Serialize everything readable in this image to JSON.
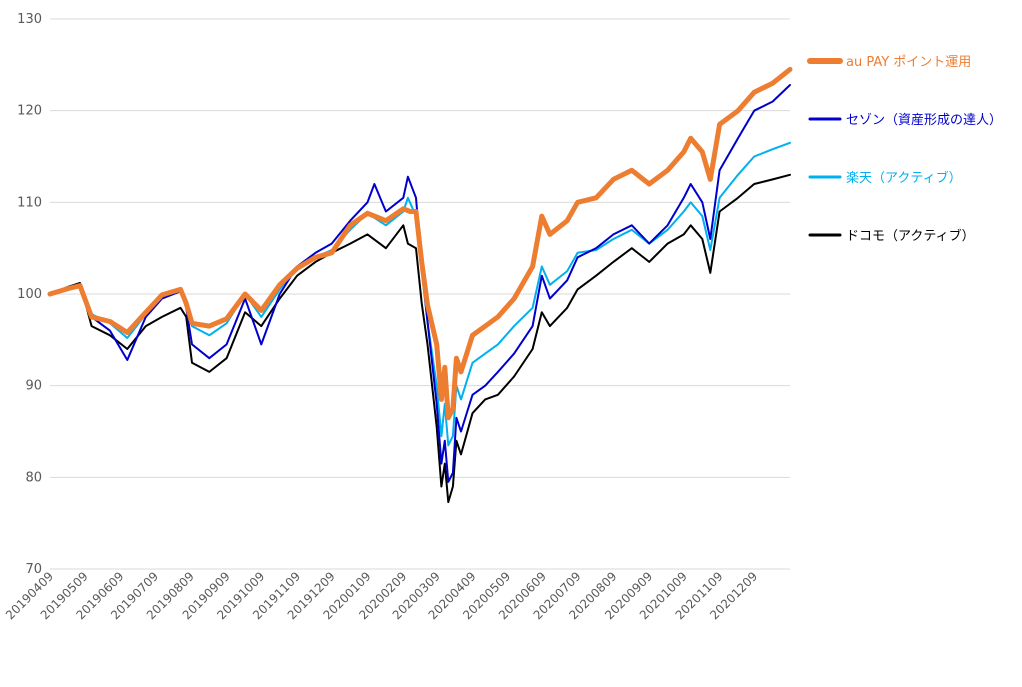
{
  "chart_data": {
    "type": "line",
    "title": "",
    "xlabel": "",
    "ylabel": "",
    "ylim": [
      70,
      130
    ],
    "yticks": [
      70,
      80,
      90,
      100,
      110,
      120,
      130
    ],
    "grid": true,
    "legend_position": "right",
    "x_tick_labels": [
      "20190409",
      "20190509",
      "20190609",
      "20190709",
      "20190809",
      "20190909",
      "20191009",
      "20191109",
      "20191209",
      "20200109",
      "20200209",
      "20200309",
      "20200409",
      "20200509",
      "20200609",
      "20200709",
      "20200809",
      "20200909",
      "20201009",
      "20201109",
      "20201209"
    ],
    "x_start": "20190409",
    "x_end": "20210109",
    "series": [
      {
        "name": "au PAY ポイント運用",
        "color": "#ED7D31",
        "width": 5,
        "points": [
          [
            "20190409",
            100.0
          ],
          [
            "20190425",
            100.6
          ],
          [
            "20190505",
            100.9
          ],
          [
            "20190515",
            97.5
          ],
          [
            "20190531",
            97.0
          ],
          [
            "20190615",
            95.8
          ],
          [
            "20190701",
            98.0
          ],
          [
            "20190715",
            99.9
          ],
          [
            "20190731",
            100.5
          ],
          [
            "20190805",
            99.0
          ],
          [
            "20190810",
            96.8
          ],
          [
            "20190825",
            96.5
          ],
          [
            "20190909",
            97.3
          ],
          [
            "20190925",
            100.0
          ],
          [
            "20191009",
            98.2
          ],
          [
            "20191025",
            101.0
          ],
          [
            "20191109",
            102.8
          ],
          [
            "20191125",
            104.0
          ],
          [
            "20191209",
            104.5
          ],
          [
            "20191225",
            107.5
          ],
          [
            "20200109",
            108.8
          ],
          [
            "20200125",
            108.0
          ],
          [
            "20200209",
            109.3
          ],
          [
            "20200215",
            109.0
          ],
          [
            "20200220",
            109.0
          ],
          [
            "20200225",
            103.5
          ],
          [
            "20200301",
            98.8
          ],
          [
            "20200309",
            94.5
          ],
          [
            "20200313",
            88.5
          ],
          [
            "20200316",
            92.0
          ],
          [
            "20200319",
            86.5
          ],
          [
            "20200323",
            87.5
          ],
          [
            "20200326",
            93.0
          ],
          [
            "20200330",
            91.5
          ],
          [
            "20200409",
            95.5
          ],
          [
            "20200420",
            96.5
          ],
          [
            "20200501",
            97.5
          ],
          [
            "20200515",
            99.5
          ],
          [
            "20200531",
            103.0
          ],
          [
            "20200608",
            108.5
          ],
          [
            "20200615",
            106.5
          ],
          [
            "20200630",
            108.0
          ],
          [
            "20200709",
            110.0
          ],
          [
            "20200725",
            110.5
          ],
          [
            "20200809",
            112.5
          ],
          [
            "20200825",
            113.5
          ],
          [
            "20200909",
            112.0
          ],
          [
            "20200925",
            113.5
          ],
          [
            "20201009",
            115.5
          ],
          [
            "20201015",
            117.0
          ],
          [
            "20201025",
            115.5
          ],
          [
            "20201101",
            112.5
          ],
          [
            "20201109",
            118.5
          ],
          [
            "20201125",
            120.0
          ],
          [
            "20201209",
            122.0
          ],
          [
            "20201225",
            123.0
          ],
          [
            "20210109",
            124.5
          ]
        ]
      },
      {
        "name": "セゾン（資産形成の達人）",
        "color": "#0000CC",
        "width": 2,
        "points": [
          [
            "20190409",
            100.0
          ],
          [
            "20190425",
            100.6
          ],
          [
            "20190505",
            101.0
          ],
          [
            "20190515",
            97.5
          ],
          [
            "20190531",
            96.0
          ],
          [
            "20190615",
            92.8
          ],
          [
            "20190701",
            97.5
          ],
          [
            "20190715",
            99.5
          ],
          [
            "20190731",
            100.3
          ],
          [
            "20190805",
            98.5
          ],
          [
            "20190810",
            94.5
          ],
          [
            "20190825",
            93.0
          ],
          [
            "20190909",
            94.5
          ],
          [
            "20190925",
            99.5
          ],
          [
            "20191009",
            94.5
          ],
          [
            "20191025",
            100.0
          ],
          [
            "20191109",
            103.0
          ],
          [
            "20191125",
            104.5
          ],
          [
            "20191209",
            105.5
          ],
          [
            "20191225",
            108.0
          ],
          [
            "20200109",
            110.0
          ],
          [
            "20200115",
            112.0
          ],
          [
            "20200125",
            109.0
          ],
          [
            "20200209",
            110.5
          ],
          [
            "20200213",
            112.8
          ],
          [
            "20200220",
            110.5
          ],
          [
            "20200225",
            103.0
          ],
          [
            "20200301",
            97.0
          ],
          [
            "20200309",
            88.0
          ],
          [
            "20200313",
            81.5
          ],
          [
            "20200316",
            84.0
          ],
          [
            "20200319",
            79.5
          ],
          [
            "20200323",
            80.5
          ],
          [
            "20200326",
            86.5
          ],
          [
            "20200330",
            85.0
          ],
          [
            "20200409",
            89.0
          ],
          [
            "20200420",
            90.0
          ],
          [
            "20200501",
            91.5
          ],
          [
            "20200515",
            93.5
          ],
          [
            "20200531",
            96.5
          ],
          [
            "20200608",
            102.0
          ],
          [
            "20200615",
            99.5
          ],
          [
            "20200630",
            101.5
          ],
          [
            "20200709",
            104.0
          ],
          [
            "20200725",
            105.0
          ],
          [
            "20200809",
            106.5
          ],
          [
            "20200825",
            107.5
          ],
          [
            "20200909",
            105.5
          ],
          [
            "20200925",
            107.5
          ],
          [
            "20201009",
            110.5
          ],
          [
            "20201015",
            112.0
          ],
          [
            "20201025",
            110.0
          ],
          [
            "20201101",
            106.0
          ],
          [
            "20201109",
            113.5
          ],
          [
            "20201125",
            117.0
          ],
          [
            "20201209",
            120.0
          ],
          [
            "20201225",
            121.0
          ],
          [
            "20210109",
            122.8
          ]
        ]
      },
      {
        "name": "楽天（アクティブ）",
        "color": "#00B0F0",
        "width": 2,
        "points": [
          [
            "20190409",
            100.0
          ],
          [
            "20190425",
            100.5
          ],
          [
            "20190505",
            100.8
          ],
          [
            "20190515",
            97.8
          ],
          [
            "20190531",
            96.8
          ],
          [
            "20190615",
            95.2
          ],
          [
            "20190701",
            97.8
          ],
          [
            "20190715",
            99.8
          ],
          [
            "20190731",
            100.4
          ],
          [
            "20190805",
            98.8
          ],
          [
            "20190810",
            96.5
          ],
          [
            "20190825",
            95.5
          ],
          [
            "20190909",
            96.8
          ],
          [
            "20190925",
            100.0
          ],
          [
            "20191009",
            97.5
          ],
          [
            "20191025",
            100.5
          ],
          [
            "20191109",
            103.0
          ],
          [
            "20191125",
            104.0
          ],
          [
            "20191209",
            104.8
          ],
          [
            "20191225",
            107.0
          ],
          [
            "20200109",
            108.8
          ],
          [
            "20200125",
            107.5
          ],
          [
            "20200209",
            109.0
          ],
          [
            "20200213",
            110.5
          ],
          [
            "20200220",
            108.5
          ],
          [
            "20200225",
            102.5
          ],
          [
            "20200301",
            97.0
          ],
          [
            "20200309",
            90.0
          ],
          [
            "20200313",
            84.5
          ],
          [
            "20200316",
            88.0
          ],
          [
            "20200319",
            83.5
          ],
          [
            "20200323",
            84.5
          ],
          [
            "20200326",
            90.0
          ],
          [
            "20200330",
            88.5
          ],
          [
            "20200409",
            92.5
          ],
          [
            "20200420",
            93.5
          ],
          [
            "20200501",
            94.5
          ],
          [
            "20200515",
            96.5
          ],
          [
            "20200531",
            98.5
          ],
          [
            "20200608",
            103.0
          ],
          [
            "20200615",
            101.0
          ],
          [
            "20200630",
            102.5
          ],
          [
            "20200709",
            104.5
          ],
          [
            "20200725",
            104.8
          ],
          [
            "20200809",
            106.0
          ],
          [
            "20200825",
            107.0
          ],
          [
            "20200909",
            105.5
          ],
          [
            "20200925",
            107.0
          ],
          [
            "20201009",
            109.0
          ],
          [
            "20201015",
            110.0
          ],
          [
            "20201025",
            108.5
          ],
          [
            "20201101",
            104.8
          ],
          [
            "20201109",
            110.5
          ],
          [
            "20201125",
            113.0
          ],
          [
            "20201209",
            115.0
          ],
          [
            "20201225",
            115.8
          ],
          [
            "20210109",
            116.5
          ]
        ]
      },
      {
        "name": "ドコモ（アクティブ）",
        "color": "#000000",
        "width": 2,
        "points": [
          [
            "20190409",
            100.0
          ],
          [
            "20190425",
            100.8
          ],
          [
            "20190505",
            101.2
          ],
          [
            "20190515",
            96.5
          ],
          [
            "20190531",
            95.5
          ],
          [
            "20190615",
            94.0
          ],
          [
            "20190701",
            96.5
          ],
          [
            "20190715",
            97.5
          ],
          [
            "20190731",
            98.5
          ],
          [
            "20190805",
            97.5
          ],
          [
            "20190810",
            92.5
          ],
          [
            "20190825",
            91.5
          ],
          [
            "20190909",
            93.0
          ],
          [
            "20190925",
            98.0
          ],
          [
            "20191009",
            96.5
          ],
          [
            "20191025",
            99.5
          ],
          [
            "20191109",
            102.0
          ],
          [
            "20191125",
            103.5
          ],
          [
            "20191209",
            104.5
          ],
          [
            "20191225",
            105.5
          ],
          [
            "20200109",
            106.5
          ],
          [
            "20200125",
            105.0
          ],
          [
            "20200209",
            107.5
          ],
          [
            "20200213",
            105.5
          ],
          [
            "20200220",
            105.0
          ],
          [
            "20200225",
            99.0
          ],
          [
            "20200301",
            94.5
          ],
          [
            "20200309",
            85.5
          ],
          [
            "20200313",
            79.0
          ],
          [
            "20200316",
            81.5
          ],
          [
            "20200319",
            77.3
          ],
          [
            "20200323",
            79.0
          ],
          [
            "20200326",
            84.0
          ],
          [
            "20200330",
            82.5
          ],
          [
            "20200409",
            87.0
          ],
          [
            "20200420",
            88.5
          ],
          [
            "20200501",
            89.0
          ],
          [
            "20200515",
            91.0
          ],
          [
            "20200531",
            94.0
          ],
          [
            "20200608",
            98.0
          ],
          [
            "20200615",
            96.5
          ],
          [
            "20200630",
            98.5
          ],
          [
            "20200709",
            100.5
          ],
          [
            "20200725",
            102.0
          ],
          [
            "20200809",
            103.5
          ],
          [
            "20200825",
            105.0
          ],
          [
            "20200909",
            103.5
          ],
          [
            "20200925",
            105.5
          ],
          [
            "20201009",
            106.5
          ],
          [
            "20201015",
            107.5
          ],
          [
            "20201025",
            106.0
          ],
          [
            "20201101",
            102.3
          ],
          [
            "20201109",
            109.0
          ],
          [
            "20201125",
            110.5
          ],
          [
            "20201209",
            112.0
          ],
          [
            "20201225",
            112.5
          ],
          [
            "20210109",
            113.0
          ]
        ]
      }
    ]
  }
}
